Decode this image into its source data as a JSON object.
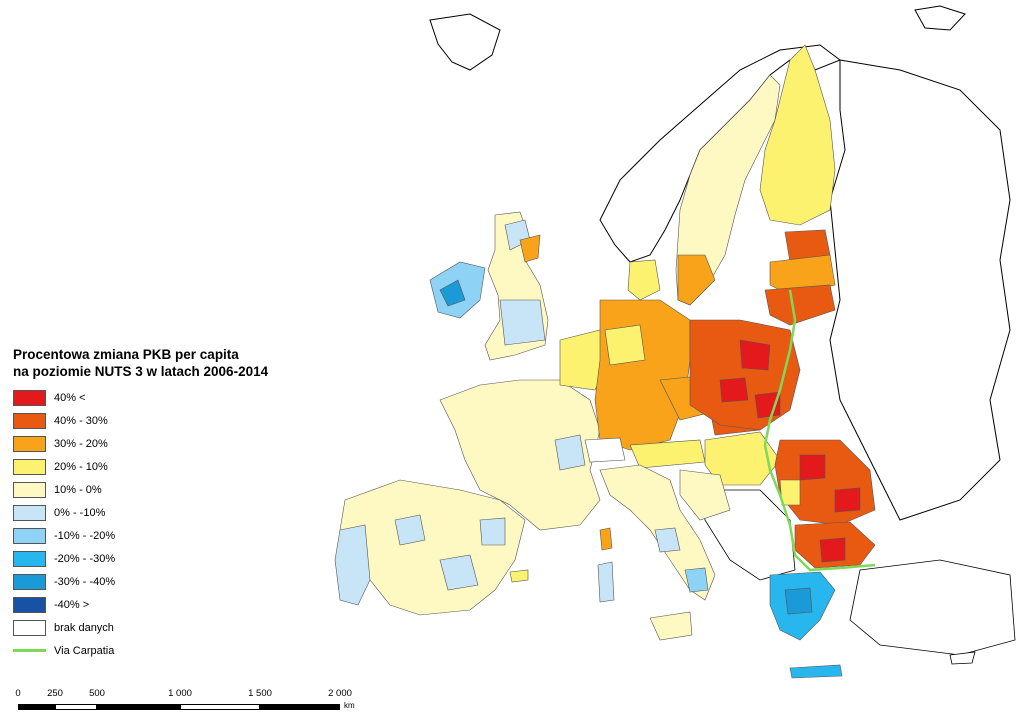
{
  "legend": {
    "title_line1": "Procentowa zmiana PKB per capita",
    "title_line2": "na poziomie NUTS 3 w latach 2006-2014",
    "items": [
      {
        "label": "40% <",
        "color": "#e3191c"
      },
      {
        "label": "40% - 30%",
        "color": "#e85a12"
      },
      {
        "label": "30% - 20%",
        "color": "#f9a31b"
      },
      {
        "label": "20% - 10%",
        "color": "#fdf270"
      },
      {
        "label": "10% - 0%",
        "color": "#fef9c3"
      },
      {
        "label": "0% - -10%",
        "color": "#c8e4f7"
      },
      {
        "label": "-10% - -20%",
        "color": "#8ed3f5"
      },
      {
        "label": "-20% - -30%",
        "color": "#27b6ee"
      },
      {
        "label": "-30% - -40%",
        "color": "#1a9ad6"
      },
      {
        "label": "-40% >",
        "color": "#1752a5"
      },
      {
        "label": "brak danych",
        "color": "#ffffff"
      }
    ],
    "route": {
      "label": "Via Carpatia",
      "color": "#7ed957"
    }
  },
  "scale": {
    "ticks": [
      "0",
      "250",
      "500",
      "1 000",
      "1 500",
      "2 000"
    ],
    "unit": "km"
  }
}
